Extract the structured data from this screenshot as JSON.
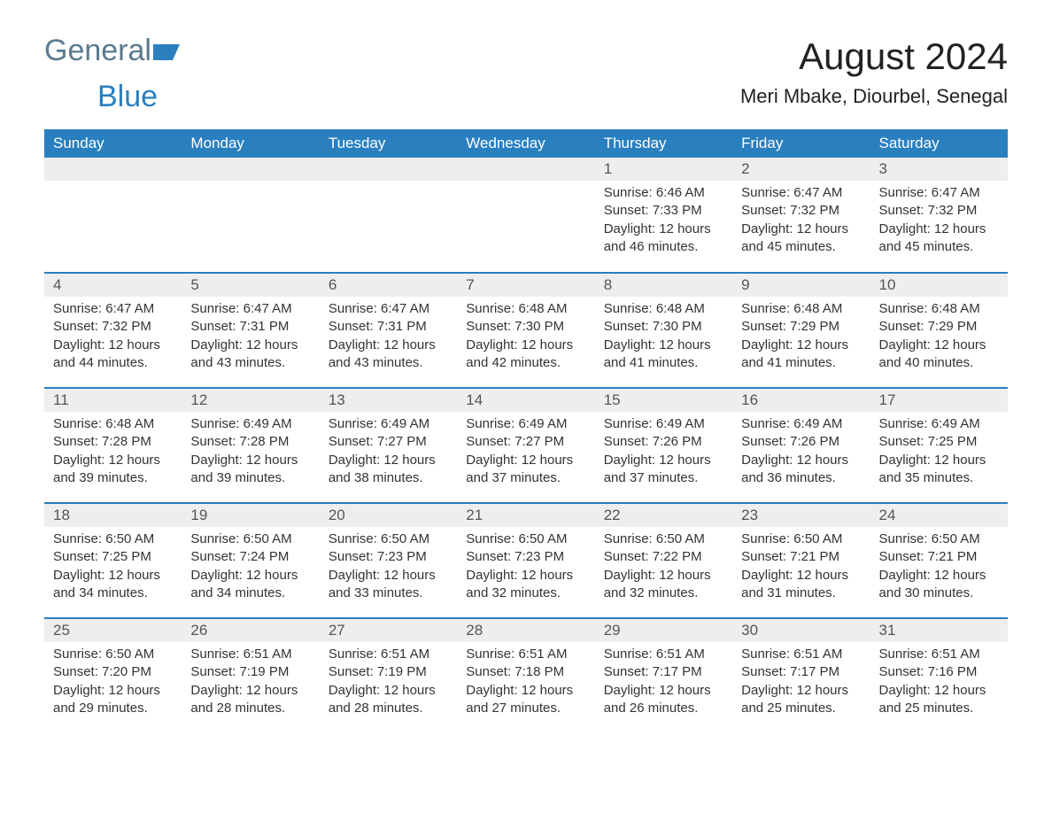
{
  "brand": {
    "part1": "General",
    "part2": "Blue"
  },
  "title": "August 2024",
  "subtitle": "Meri Mbake, Diourbel, Senegal",
  "colors": {
    "header_bg": "#2a7fbf",
    "header_text": "#ffffff",
    "daynum_bg": "#eeeeee",
    "daynum_text": "#555555",
    "body_text": "#333333",
    "logo_gray": "#5a7a8f",
    "logo_blue": "#2a7fbf",
    "row_border": "#2a7fbf"
  },
  "typography": {
    "title_fontsize": 42,
    "subtitle_fontsize": 22,
    "header_fontsize": 17,
    "cell_fontsize": 15
  },
  "days_of_week": [
    "Sunday",
    "Monday",
    "Tuesday",
    "Wednesday",
    "Thursday",
    "Friday",
    "Saturday"
  ],
  "weeks": [
    [
      {
        "empty": true
      },
      {
        "empty": true
      },
      {
        "empty": true
      },
      {
        "empty": true
      },
      {
        "day": "1",
        "sunrise": "Sunrise: 6:46 AM",
        "sunset": "Sunset: 7:33 PM",
        "daylight": "Daylight: 12 hours and 46 minutes."
      },
      {
        "day": "2",
        "sunrise": "Sunrise: 6:47 AM",
        "sunset": "Sunset: 7:32 PM",
        "daylight": "Daylight: 12 hours and 45 minutes."
      },
      {
        "day": "3",
        "sunrise": "Sunrise: 6:47 AM",
        "sunset": "Sunset: 7:32 PM",
        "daylight": "Daylight: 12 hours and 45 minutes."
      }
    ],
    [
      {
        "day": "4",
        "sunrise": "Sunrise: 6:47 AM",
        "sunset": "Sunset: 7:32 PM",
        "daylight": "Daylight: 12 hours and 44 minutes."
      },
      {
        "day": "5",
        "sunrise": "Sunrise: 6:47 AM",
        "sunset": "Sunset: 7:31 PM",
        "daylight": "Daylight: 12 hours and 43 minutes."
      },
      {
        "day": "6",
        "sunrise": "Sunrise: 6:47 AM",
        "sunset": "Sunset: 7:31 PM",
        "daylight": "Daylight: 12 hours and 43 minutes."
      },
      {
        "day": "7",
        "sunrise": "Sunrise: 6:48 AM",
        "sunset": "Sunset: 7:30 PM",
        "daylight": "Daylight: 12 hours and 42 minutes."
      },
      {
        "day": "8",
        "sunrise": "Sunrise: 6:48 AM",
        "sunset": "Sunset: 7:30 PM",
        "daylight": "Daylight: 12 hours and 41 minutes."
      },
      {
        "day": "9",
        "sunrise": "Sunrise: 6:48 AM",
        "sunset": "Sunset: 7:29 PM",
        "daylight": "Daylight: 12 hours and 41 minutes."
      },
      {
        "day": "10",
        "sunrise": "Sunrise: 6:48 AM",
        "sunset": "Sunset: 7:29 PM",
        "daylight": "Daylight: 12 hours and 40 minutes."
      }
    ],
    [
      {
        "day": "11",
        "sunrise": "Sunrise: 6:48 AM",
        "sunset": "Sunset: 7:28 PM",
        "daylight": "Daylight: 12 hours and 39 minutes."
      },
      {
        "day": "12",
        "sunrise": "Sunrise: 6:49 AM",
        "sunset": "Sunset: 7:28 PM",
        "daylight": "Daylight: 12 hours and 39 minutes."
      },
      {
        "day": "13",
        "sunrise": "Sunrise: 6:49 AM",
        "sunset": "Sunset: 7:27 PM",
        "daylight": "Daylight: 12 hours and 38 minutes."
      },
      {
        "day": "14",
        "sunrise": "Sunrise: 6:49 AM",
        "sunset": "Sunset: 7:27 PM",
        "daylight": "Daylight: 12 hours and 37 minutes."
      },
      {
        "day": "15",
        "sunrise": "Sunrise: 6:49 AM",
        "sunset": "Sunset: 7:26 PM",
        "daylight": "Daylight: 12 hours and 37 minutes."
      },
      {
        "day": "16",
        "sunrise": "Sunrise: 6:49 AM",
        "sunset": "Sunset: 7:26 PM",
        "daylight": "Daylight: 12 hours and 36 minutes."
      },
      {
        "day": "17",
        "sunrise": "Sunrise: 6:49 AM",
        "sunset": "Sunset: 7:25 PM",
        "daylight": "Daylight: 12 hours and 35 minutes."
      }
    ],
    [
      {
        "day": "18",
        "sunrise": "Sunrise: 6:50 AM",
        "sunset": "Sunset: 7:25 PM",
        "daylight": "Daylight: 12 hours and 34 minutes."
      },
      {
        "day": "19",
        "sunrise": "Sunrise: 6:50 AM",
        "sunset": "Sunset: 7:24 PM",
        "daylight": "Daylight: 12 hours and 34 minutes."
      },
      {
        "day": "20",
        "sunrise": "Sunrise: 6:50 AM",
        "sunset": "Sunset: 7:23 PM",
        "daylight": "Daylight: 12 hours and 33 minutes."
      },
      {
        "day": "21",
        "sunrise": "Sunrise: 6:50 AM",
        "sunset": "Sunset: 7:23 PM",
        "daylight": "Daylight: 12 hours and 32 minutes."
      },
      {
        "day": "22",
        "sunrise": "Sunrise: 6:50 AM",
        "sunset": "Sunset: 7:22 PM",
        "daylight": "Daylight: 12 hours and 32 minutes."
      },
      {
        "day": "23",
        "sunrise": "Sunrise: 6:50 AM",
        "sunset": "Sunset: 7:21 PM",
        "daylight": "Daylight: 12 hours and 31 minutes."
      },
      {
        "day": "24",
        "sunrise": "Sunrise: 6:50 AM",
        "sunset": "Sunset: 7:21 PM",
        "daylight": "Daylight: 12 hours and 30 minutes."
      }
    ],
    [
      {
        "day": "25",
        "sunrise": "Sunrise: 6:50 AM",
        "sunset": "Sunset: 7:20 PM",
        "daylight": "Daylight: 12 hours and 29 minutes."
      },
      {
        "day": "26",
        "sunrise": "Sunrise: 6:51 AM",
        "sunset": "Sunset: 7:19 PM",
        "daylight": "Daylight: 12 hours and 28 minutes."
      },
      {
        "day": "27",
        "sunrise": "Sunrise: 6:51 AM",
        "sunset": "Sunset: 7:19 PM",
        "daylight": "Daylight: 12 hours and 28 minutes."
      },
      {
        "day": "28",
        "sunrise": "Sunrise: 6:51 AM",
        "sunset": "Sunset: 7:18 PM",
        "daylight": "Daylight: 12 hours and 27 minutes."
      },
      {
        "day": "29",
        "sunrise": "Sunrise: 6:51 AM",
        "sunset": "Sunset: 7:17 PM",
        "daylight": "Daylight: 12 hours and 26 minutes."
      },
      {
        "day": "30",
        "sunrise": "Sunrise: 6:51 AM",
        "sunset": "Sunset: 7:17 PM",
        "daylight": "Daylight: 12 hours and 25 minutes."
      },
      {
        "day": "31",
        "sunrise": "Sunrise: 6:51 AM",
        "sunset": "Sunset: 7:16 PM",
        "daylight": "Daylight: 12 hours and 25 minutes."
      }
    ]
  ]
}
